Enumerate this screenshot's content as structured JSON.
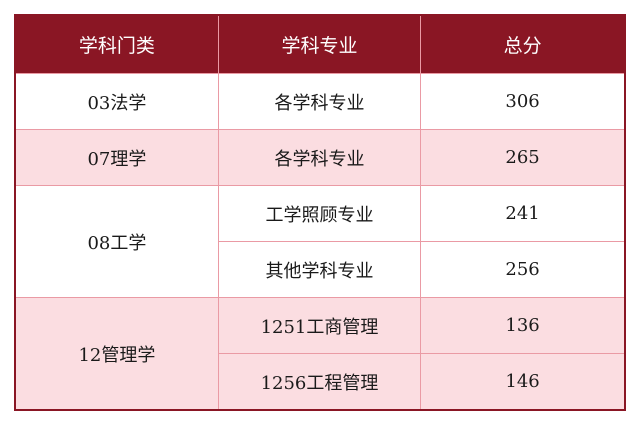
{
  "colors": {
    "header_bg": "#8a1624",
    "header_text": "#ffffff",
    "alt_row_bg": "#fbdde1",
    "grid_line": "#ea9aa4"
  },
  "headers": [
    "学科门类",
    "学科专业",
    "总分"
  ],
  "rows": [
    {
      "category": "03法学",
      "majors": [
        {
          "name": "各学科专业",
          "score": "306"
        }
      ]
    },
    {
      "category": "07理学",
      "majors": [
        {
          "name": "各学科专业",
          "score": "265"
        }
      ]
    },
    {
      "category": "08工学",
      "majors": [
        {
          "name": "工学照顾专业",
          "score": "241"
        },
        {
          "name": "其他学科专业",
          "score": "256"
        }
      ]
    },
    {
      "category": "12管理学",
      "majors": [
        {
          "name": "1251工商管理",
          "score": "136"
        },
        {
          "name": "1256工程管理",
          "score": "146"
        }
      ]
    }
  ]
}
